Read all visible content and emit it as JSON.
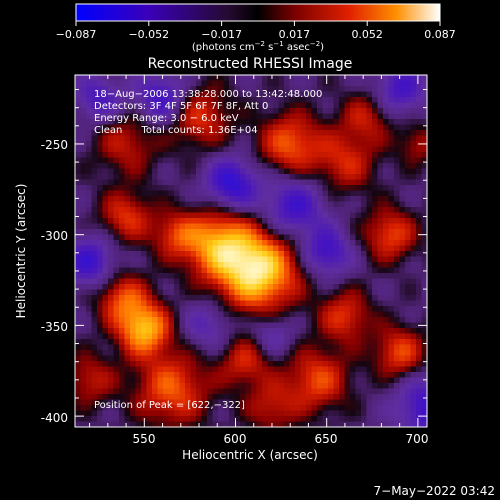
{
  "chart_data": {
    "type": "heatmap",
    "title": "Reconstructed RHESSI Image",
    "xlabel": "Heliocentric X (arcsec)",
    "ylabel": "Heliocentric Y (arcsec)",
    "xlim": [
      512,
      705
    ],
    "ylim": [
      -406,
      -212
    ],
    "x_ticks": [
      550,
      600,
      650,
      700
    ],
    "y_ticks": [
      -250,
      -300,
      -350,
      -400
    ],
    "colorbar": {
      "range": [
        -0.087,
        0.087
      ],
      "ticks": [
        "−0.087",
        "−0.052",
        "−0.017",
        "0.017",
        "0.052",
        "0.087"
      ],
      "unit_main": "(photons cm",
      "unit_exp1": "−2",
      "unit_mid": " s",
      "unit_exp2": "−1",
      "unit_end": " asec",
      "unit_exp3": "−2",
      "unit_close": ")"
    },
    "info_lines": [
      "18−Aug−2006 13:38:28.000 to 13:42:48.000",
      "Detectors: 3F 4F 5F 6F 7F 8F, Att 0",
      "Energy Range: 3.0 − 6.0 keV",
      "Clean      Total counts: 1.36E+04"
    ],
    "peak_label": "Position of Peak = [622,−322]",
    "peak": {
      "x": 622,
      "y": -322
    },
    "timestamp": "7−May−2022 03:42",
    "sources": [
      {
        "x": 612,
        "y": -320,
        "amp": 1.0,
        "r": 15
      },
      {
        "x": 590,
        "y": -305,
        "amp": 0.7,
        "r": 13
      },
      {
        "x": 550,
        "y": -352,
        "amp": 0.8,
        "r": 10
      },
      {
        "x": 538,
        "y": -335,
        "amp": 0.5,
        "r": 10
      },
      {
        "x": 565,
        "y": -385,
        "amp": 0.55,
        "r": 14
      },
      {
        "x": 540,
        "y": -290,
        "amp": 0.45,
        "r": 10
      },
      {
        "x": 567,
        "y": -300,
        "amp": 0.4,
        "r": 9
      },
      {
        "x": 660,
        "y": -345,
        "amp": 0.45,
        "r": 10
      },
      {
        "x": 685,
        "y": -300,
        "amp": 0.5,
        "r": 10
      },
      {
        "x": 690,
        "y": -365,
        "amp": 0.5,
        "r": 10
      },
      {
        "x": 645,
        "y": -380,
        "amp": 0.5,
        "r": 12
      },
      {
        "x": 630,
        "y": -250,
        "amp": 0.55,
        "r": 12
      },
      {
        "x": 660,
        "y": -260,
        "amp": 0.4,
        "r": 12
      },
      {
        "x": 580,
        "y": -235,
        "amp": 0.45,
        "r": 12
      },
      {
        "x": 540,
        "y": -250,
        "amp": 0.35,
        "r": 12
      },
      {
        "x": 605,
        "y": -370,
        "amp": 0.4,
        "r": 10
      },
      {
        "x": 620,
        "y": -395,
        "amp": 0.35,
        "r": 10
      },
      {
        "x": 672,
        "y": -235,
        "amp": 0.35,
        "r": 10
      },
      {
        "x": 700,
        "y": -250,
        "amp": 0.3,
        "r": 8
      },
      {
        "x": 520,
        "y": -380,
        "amp": 0.35,
        "r": 10
      },
      {
        "x": 598,
        "y": -272,
        "amp": -0.6,
        "r": 10
      },
      {
        "x": 632,
        "y": -285,
        "amp": -0.5,
        "r": 12
      },
      {
        "x": 520,
        "y": -315,
        "amp": -0.5,
        "r": 10
      },
      {
        "x": 650,
        "y": -310,
        "amp": -0.5,
        "r": 9
      },
      {
        "x": 560,
        "y": -225,
        "amp": -0.5,
        "r": 10
      },
      {
        "x": 705,
        "y": -395,
        "amp": -0.5,
        "r": 12
      },
      {
        "x": 525,
        "y": -225,
        "amp": -0.4,
        "r": 9
      },
      {
        "x": 690,
        "y": -220,
        "amp": -0.45,
        "r": 10
      },
      {
        "x": 585,
        "y": -350,
        "amp": -0.3,
        "r": 10
      },
      {
        "x": 620,
        "y": -355,
        "amp": -0.3,
        "r": 8
      }
    ]
  }
}
